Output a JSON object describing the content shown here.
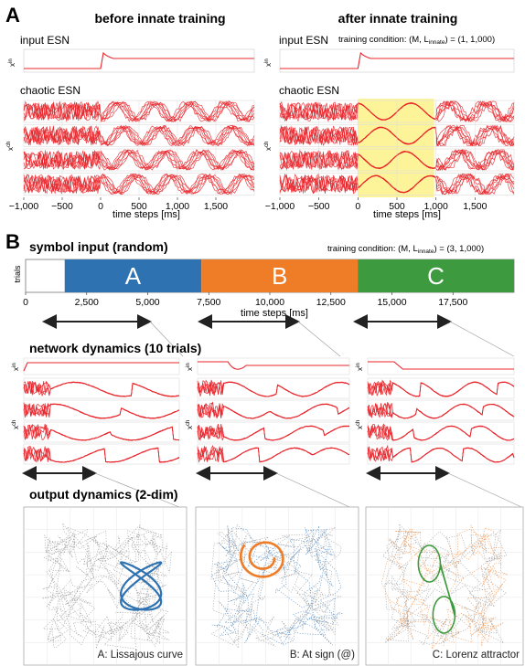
{
  "colors": {
    "trace": "#e8242a",
    "A": "#2f72b1",
    "B": "#ef7d27",
    "C": "#3e9a3e",
    "highlight": "#fdf49a",
    "grid": "#dcdcdc",
    "arrow": "#222222"
  },
  "panelA": {
    "label": "A",
    "left_title": "before innate training",
    "right_title": "after innate training",
    "input_label": "input ESN",
    "chaotic_label": "chaotic ESN",
    "training_condition": "training condition: (M, L",
    "training_condition_sub": "innate",
    "training_condition_end": ") = (1, 1,000)",
    "xin_label": "x",
    "xin_sup": "in",
    "xch_label": "x",
    "xch_sup": "ch",
    "xlabel": "time steps [ms]",
    "xtick_labels": [
      "−1,000",
      "−500",
      "0",
      "500",
      "1,000",
      "1,500"
    ]
  },
  "panelB": {
    "label": "B",
    "symbol_title": "symbol input (random)",
    "training_condition": "training condition: (M, L",
    "training_condition_sub": "innate",
    "training_condition_end": ") = (3, 1,000)",
    "trials_label": "trials",
    "xlabel": "time steps [ms]",
    "xtick_labels": [
      "0",
      "2,500",
      "5,000",
      "7,500",
      "10,000",
      "12,500",
      "15,000",
      "17,500"
    ],
    "network_title": "network dynamics (10 trials)",
    "output_title": "output dynamics (2-dim)",
    "xin_label": "x",
    "xin_sup": "in",
    "xch_label": "x",
    "xch_sup": "ch",
    "captions": [
      "A: Lissajous curve",
      "B: At sign (@)",
      "C: Lorenz attractor"
    ]
  },
  "chart_data": [
    {
      "type": "line",
      "title": "before innate training",
      "xlabel": "time steps [ms]",
      "xlim": [
        -1000,
        2000
      ],
      "series": [
        {
          "name": "input ESN",
          "note": "step pulse at t=0 decaying to constant"
        },
        {
          "name": "chaotic ESN",
          "note": "4 units, chaotic over whole range"
        }
      ]
    },
    {
      "type": "line",
      "title": "after innate training",
      "xlabel": "time steps [ms]",
      "xlim": [
        -1000,
        2000
      ],
      "highlight_range": [
        0,
        1000
      ],
      "series": [
        {
          "name": "input ESN"
        },
        {
          "name": "chaotic ESN",
          "note": "reproducible trajectories within trained window"
        }
      ]
    },
    {
      "type": "bar",
      "title": "symbol input (random)",
      "xlabel": "time steps [ms]",
      "xlim": [
        0,
        20000
      ],
      "segments": [
        {
          "symbol": "A",
          "start": 1600,
          "end": 7200
        },
        {
          "symbol": "B",
          "start": 7200,
          "end": 13600
        },
        {
          "symbol": "C",
          "start": 13600,
          "end": 20000
        }
      ]
    },
    {
      "type": "scatter",
      "title": "output dynamics (2-dim)",
      "panels": [
        "A: Lissajous curve",
        "B: At sign (@)",
        "C: Lorenz attractor"
      ]
    }
  ]
}
